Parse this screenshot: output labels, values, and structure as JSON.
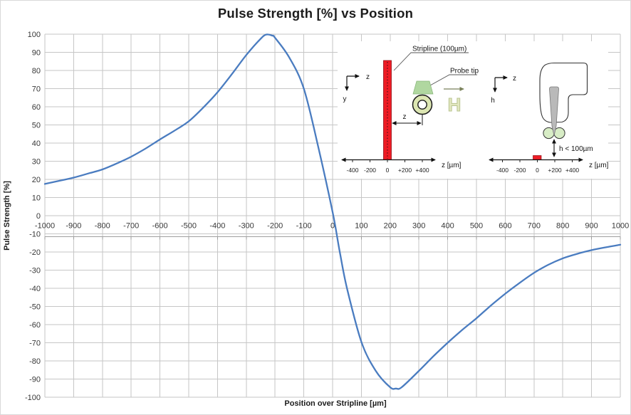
{
  "title": "Pulse Strength [%] vs Position",
  "chart_data": {
    "type": "line",
    "title": "Pulse Strength [%] vs Position",
    "xlabel": "Position over Stripline [µm]",
    "ylabel": "Pulse Strength [%]",
    "xlim": [
      -1000,
      1000
    ],
    "ylim": [
      -100,
      100
    ],
    "grid": true,
    "x_ticks": [
      "-1000",
      "-900",
      "-800",
      "-700",
      "-600",
      "-500",
      "-400",
      "-300",
      "-200",
      "-100",
      "0",
      "100",
      "200",
      "300",
      "400",
      "500",
      "600",
      "700",
      "800",
      "900",
      "1000"
    ],
    "y_ticks": [
      "100",
      "90",
      "80",
      "70",
      "60",
      "50",
      "40",
      "30",
      "20",
      "10",
      "0",
      "-10",
      "-20",
      "-30",
      "-40",
      "-50",
      "-60",
      "-70",
      "-80",
      "-90",
      "-100"
    ],
    "series": [
      {
        "color": "#4a7cc0",
        "points": [
          [
            -1000,
            17.5
          ],
          [
            -950,
            19.2
          ],
          [
            -900,
            21
          ],
          [
            -850,
            23.2
          ],
          [
            -800,
            25.5
          ],
          [
            -750,
            28.8
          ],
          [
            -700,
            32.5
          ],
          [
            -650,
            37
          ],
          [
            -600,
            42
          ],
          [
            -550,
            46.8
          ],
          [
            -500,
            52
          ],
          [
            -450,
            59.5
          ],
          [
            -400,
            68
          ],
          [
            -350,
            78
          ],
          [
            -300,
            88.5
          ],
          [
            -250,
            97.5
          ],
          [
            -230,
            99.8
          ],
          [
            -210,
            99.2
          ],
          [
            -200,
            98
          ],
          [
            -150,
            87
          ],
          [
            -100,
            70
          ],
          [
            -50,
            38
          ],
          [
            0,
            2
          ],
          [
            25,
            -20
          ],
          [
            50,
            -40
          ],
          [
            100,
            -69.5
          ],
          [
            150,
            -85.5
          ],
          [
            200,
            -94.5
          ],
          [
            220,
            -95.2
          ],
          [
            240,
            -94.5
          ],
          [
            300,
            -85.5
          ],
          [
            350,
            -77.5
          ],
          [
            400,
            -70
          ],
          [
            450,
            -63
          ],
          [
            500,
            -56.5
          ],
          [
            550,
            -49.5
          ],
          [
            600,
            -43
          ],
          [
            650,
            -37
          ],
          [
            700,
            -31.5
          ],
          [
            750,
            -27
          ],
          [
            800,
            -23.5
          ],
          [
            850,
            -21
          ],
          [
            900,
            -19
          ],
          [
            950,
            -17.4
          ],
          [
            1000,
            -16
          ]
        ]
      }
    ]
  },
  "insets": {
    "left": {
      "callout_stripline": "Stripline (100µm)",
      "callout_probe": "Probe tip",
      "axis_horiz": "z",
      "axis_vert": "y",
      "distance_label": "z",
      "field_symbol": "H",
      "ticks": [
        "-400",
        "-200",
        "0",
        "+200",
        "+400"
      ],
      "unit": "z [µm]"
    },
    "right": {
      "axis_horiz": "z",
      "axis_vert": "h",
      "gap_label": "h < 100µm",
      "ticks": [
        "-400",
        "-200",
        "0",
        "+200",
        "+400"
      ],
      "unit": "z [µm]"
    },
    "colors": {
      "stripline_red": "#ee1c25",
      "probe_ring": "#dce6b2",
      "probe_neck": "#b0d7a0",
      "tip_gray": "#b9b9b9",
      "pad_green": "#d8edc6",
      "field_fill": "#e2e7c0"
    }
  }
}
